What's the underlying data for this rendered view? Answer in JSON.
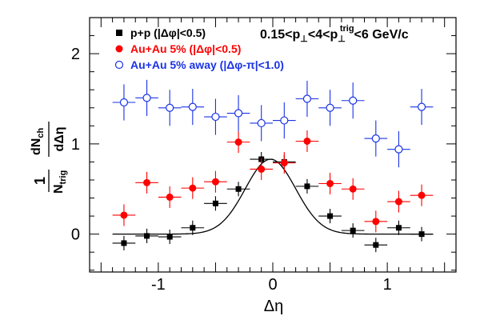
{
  "chart_data": {
    "type": "scatter",
    "xlabel": "Δη",
    "ylabel": {
      "prefix": "1",
      "N": "N",
      "N_sub": "trig",
      "dN": "dN",
      "dN_sub": "ch",
      "d_eta": "dΔη"
    },
    "annotation": {
      "p1": "0.15<p",
      "perp1": "⊥",
      "p2": "<4<p",
      "perp2": "⊥",
      "trig": "trig",
      "p3": "<6 GeV/c"
    },
    "xlim": [
      -1.6,
      1.6
    ],
    "ylim": [
      -0.42,
      2.4
    ],
    "xticks": [
      -1,
      0,
      1
    ],
    "xtick_labels": [
      "-1",
      "0",
      "1"
    ],
    "yticks": [
      0,
      1,
      2
    ],
    "ytick_labels": [
      "0",
      "1",
      "2"
    ],
    "grid": false,
    "legend_position": "top-left",
    "series": [
      {
        "name": "p+p (|Δφ|<0.5)",
        "marker": "filled-square",
        "color": "#000000",
        "x": [
          -1.3,
          -1.1,
          -0.9,
          -0.7,
          -0.5,
          -0.3,
          -0.1,
          0.1,
          0.3,
          0.5,
          0.7,
          0.9,
          1.1,
          1.3
        ],
        "y": [
          -0.1,
          -0.02,
          -0.03,
          0.07,
          0.34,
          0.5,
          0.83,
          0.8,
          0.53,
          0.2,
          0.04,
          -0.12,
          0.07,
          0.0
        ],
        "xerr": 0.1,
        "yerr": [
          0.08,
          0.08,
          0.08,
          0.08,
          0.08,
          0.08,
          0.08,
          0.08,
          0.08,
          0.08,
          0.08,
          0.08,
          0.08,
          0.08
        ]
      },
      {
        "name": "Au+Au 5% (|Δφ|<0.5)",
        "marker": "filled-circle",
        "color": "#ff0000",
        "x": [
          -1.3,
          -1.1,
          -0.9,
          -0.7,
          -0.5,
          -0.3,
          -0.1,
          0.1,
          0.3,
          0.5,
          0.7,
          0.9,
          1.1,
          1.3
        ],
        "y": [
          0.21,
          0.57,
          0.41,
          0.51,
          0.58,
          1.02,
          0.72,
          0.79,
          1.03,
          0.56,
          0.5,
          0.14,
          0.36,
          0.43
        ],
        "xerr": 0.1,
        "yerr": [
          0.12,
          0.12,
          0.12,
          0.12,
          0.12,
          0.12,
          0.12,
          0.12,
          0.12,
          0.12,
          0.12,
          0.12,
          0.12,
          0.12
        ]
      },
      {
        "name": "Au+Au 5% away (|Δφ-π|<1.0)",
        "marker": "open-circle",
        "color": "#1a33e6",
        "x": [
          -1.3,
          -1.1,
          -0.9,
          -0.7,
          -0.5,
          -0.3,
          -0.1,
          0.1,
          0.3,
          0.5,
          0.7,
          0.9,
          1.1,
          1.3
        ],
        "y": [
          1.46,
          1.51,
          1.4,
          1.41,
          1.3,
          1.34,
          1.23,
          1.26,
          1.5,
          1.4,
          1.48,
          1.06,
          0.94,
          1.41
        ],
        "xerr": 0.1,
        "yerr": [
          0.2,
          0.2,
          0.2,
          0.2,
          0.2,
          0.2,
          0.2,
          0.2,
          0.2,
          0.2,
          0.2,
          0.2,
          0.2,
          0.2
        ]
      }
    ],
    "fit": {
      "type": "gaussian",
      "amplitude": 0.83,
      "mean": -0.02,
      "sigma": 0.22,
      "color": "#000000"
    }
  }
}
